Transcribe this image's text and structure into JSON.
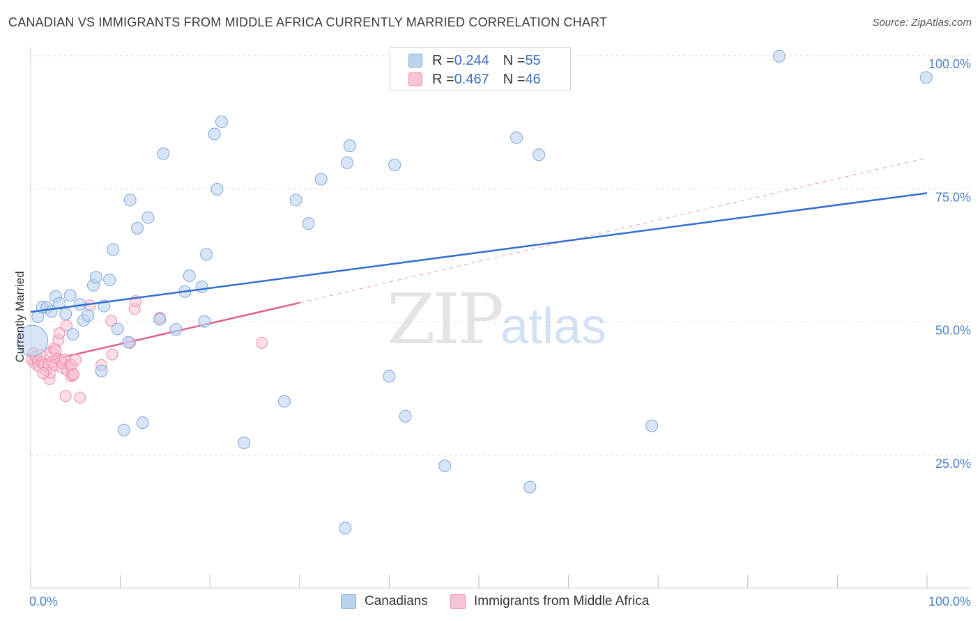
{
  "header": {
    "title": "CANADIAN VS IMMIGRANTS FROM MIDDLE AFRICA CURRENTLY MARRIED CORRELATION CHART",
    "source": "Source: ZipAtlas.com"
  },
  "watermark": {
    "zip": "ZIP",
    "atlas": "atlas"
  },
  "legend": {
    "rows": [
      {
        "r_label": "R = ",
        "r_value": "0.244",
        "n_label": "N = ",
        "n_value": "55"
      },
      {
        "r_label": "R = ",
        "r_value": "0.467",
        "n_label": "N = ",
        "n_value": "46"
      }
    ]
  },
  "bottom_legend": {
    "series1": "Canadians",
    "series2": "Immigrants from Middle Africa"
  },
  "colors": {
    "blue_fill": "#bcd3f0",
    "blue_stroke": "#7fa7da",
    "blue_line": "#2e6fd0",
    "pink_fill": "#f8c3d2",
    "pink_stroke": "#ee8cab",
    "pink_line": "#e05e8c",
    "grid": "#d9d9d9",
    "axis_text": "#4a7fc8"
  },
  "chart_data": {
    "type": "scatter",
    "title": "CANADIAN VS IMMIGRANTS FROM MIDDLE AFRICA CURRENTLY MARRIED CORRELATION CHART",
    "xlabel": "",
    "ylabel": "Currently Married",
    "xlim": [
      0,
      100
    ],
    "ylim": [
      0,
      100
    ],
    "x_tick_labels": [
      "0.0%",
      "100.0%"
    ],
    "y_ticks": [
      25,
      50,
      75,
      100
    ],
    "y_tick_labels": [
      "25.0%",
      "50.0%",
      "75.0%",
      "100.0%"
    ],
    "grid": true,
    "series": [
      {
        "name": "Canadians",
        "R": 0.244,
        "N": 55,
        "trend": {
          "x": [
            0,
            100
          ],
          "y": [
            51.9,
            74.2
          ]
        },
        "points": [
          {
            "x": 0.2,
            "y": 46.5,
            "big": true
          },
          {
            "x": 0.8,
            "y": 51.0
          },
          {
            "x": 1.3,
            "y": 52.8
          },
          {
            "x": 1.8,
            "y": 52.7
          },
          {
            "x": 2.3,
            "y": 52.0
          },
          {
            "x": 2.8,
            "y": 54.8
          },
          {
            "x": 3.2,
            "y": 53.5
          },
          {
            "x": 3.9,
            "y": 51.5
          },
          {
            "x": 4.4,
            "y": 55.0
          },
          {
            "x": 4.7,
            "y": 47.7
          },
          {
            "x": 5.5,
            "y": 53.3
          },
          {
            "x": 5.9,
            "y": 50.3
          },
          {
            "x": 6.4,
            "y": 51.2
          },
          {
            "x": 7.0,
            "y": 56.9
          },
          {
            "x": 7.3,
            "y": 58.4
          },
          {
            "x": 7.9,
            "y": 40.8
          },
          {
            "x": 8.2,
            "y": 53.0
          },
          {
            "x": 8.8,
            "y": 57.9
          },
          {
            "x": 9.2,
            "y": 63.6
          },
          {
            "x": 9.7,
            "y": 48.7
          },
          {
            "x": 10.4,
            "y": 29.7
          },
          {
            "x": 10.9,
            "y": 46.2
          },
          {
            "x": 11.1,
            "y": 72.9
          },
          {
            "x": 11.9,
            "y": 67.6
          },
          {
            "x": 12.5,
            "y": 31.1
          },
          {
            "x": 13.1,
            "y": 69.6
          },
          {
            "x": 14.4,
            "y": 50.5
          },
          {
            "x": 14.8,
            "y": 81.6
          },
          {
            "x": 16.2,
            "y": 48.6
          },
          {
            "x": 17.2,
            "y": 55.7
          },
          {
            "x": 17.7,
            "y": 58.7
          },
          {
            "x": 19.1,
            "y": 56.6
          },
          {
            "x": 19.4,
            "y": 50.1
          },
          {
            "x": 19.6,
            "y": 62.7
          },
          {
            "x": 20.5,
            "y": 85.3
          },
          {
            "x": 20.8,
            "y": 74.9
          },
          {
            "x": 21.3,
            "y": 87.6
          },
          {
            "x": 23.8,
            "y": 27.3
          },
          {
            "x": 28.3,
            "y": 35.1
          },
          {
            "x": 29.6,
            "y": 72.9
          },
          {
            "x": 31.0,
            "y": 68.5
          },
          {
            "x": 32.4,
            "y": 76.8
          },
          {
            "x": 35.1,
            "y": 11.3
          },
          {
            "x": 35.3,
            "y": 79.9
          },
          {
            "x": 35.6,
            "y": 83.1
          },
          {
            "x": 40.0,
            "y": 39.8
          },
          {
            "x": 40.6,
            "y": 79.5
          },
          {
            "x": 41.8,
            "y": 32.3
          },
          {
            "x": 46.2,
            "y": 23.0
          },
          {
            "x": 54.2,
            "y": 84.6
          },
          {
            "x": 55.7,
            "y": 19.0
          },
          {
            "x": 56.7,
            "y": 81.4
          },
          {
            "x": 69.3,
            "y": 30.5
          },
          {
            "x": 83.5,
            "y": 99.9
          },
          {
            "x": 99.9,
            "y": 95.9
          }
        ]
      },
      {
        "name": "Immigrants from Middle Africa",
        "R": 0.467,
        "N": 46,
        "trend_solid": {
          "x": [
            0,
            30
          ],
          "y": [
            42.0,
            53.6
          ]
        },
        "trend_dashed": {
          "x": [
            30,
            100
          ],
          "y": [
            53.6,
            80.8
          ]
        },
        "points": [
          {
            "x": 0.1,
            "y": 43.0
          },
          {
            "x": 0.3,
            "y": 44.1
          },
          {
            "x": 0.4,
            "y": 42.3
          },
          {
            "x": 0.6,
            "y": 43.5
          },
          {
            "x": 0.8,
            "y": 42.6
          },
          {
            "x": 0.9,
            "y": 41.7
          },
          {
            "x": 1.1,
            "y": 43.8
          },
          {
            "x": 1.3,
            "y": 42.4
          },
          {
            "x": 1.5,
            "y": 42.0
          },
          {
            "x": 1.7,
            "y": 40.9
          },
          {
            "x": 1.9,
            "y": 41.5
          },
          {
            "x": 2.0,
            "y": 42.1
          },
          {
            "x": 2.1,
            "y": 39.3
          },
          {
            "x": 2.2,
            "y": 40.5
          },
          {
            "x": 2.3,
            "y": 44.4
          },
          {
            "x": 2.4,
            "y": 42.5
          },
          {
            "x": 2.6,
            "y": 45.0
          },
          {
            "x": 2.7,
            "y": 41.9
          },
          {
            "x": 2.8,
            "y": 44.7
          },
          {
            "x": 3.0,
            "y": 43.1
          },
          {
            "x": 3.1,
            "y": 46.6
          },
          {
            "x": 3.2,
            "y": 47.9
          },
          {
            "x": 3.4,
            "y": 42.8
          },
          {
            "x": 3.5,
            "y": 41.4
          },
          {
            "x": 3.6,
            "y": 42.2
          },
          {
            "x": 3.8,
            "y": 43.0
          },
          {
            "x": 3.9,
            "y": 36.1
          },
          {
            "x": 4.0,
            "y": 49.3
          },
          {
            "x": 4.1,
            "y": 40.9
          },
          {
            "x": 4.4,
            "y": 42.0
          },
          {
            "x": 4.5,
            "y": 39.8
          },
          {
            "x": 4.6,
            "y": 41.9
          },
          {
            "x": 4.7,
            "y": 40.0
          },
          {
            "x": 4.8,
            "y": 40.2
          },
          {
            "x": 5.0,
            "y": 42.9
          },
          {
            "x": 5.5,
            "y": 35.8
          },
          {
            "x": 6.6,
            "y": 53.1
          },
          {
            "x": 7.9,
            "y": 41.9
          },
          {
            "x": 9.0,
            "y": 50.2
          },
          {
            "x": 9.1,
            "y": 43.9
          },
          {
            "x": 11.1,
            "y": 46.1
          },
          {
            "x": 11.6,
            "y": 52.4
          },
          {
            "x": 11.7,
            "y": 53.9
          },
          {
            "x": 14.4,
            "y": 50.8
          },
          {
            "x": 25.8,
            "y": 46.1
          },
          {
            "x": 1.4,
            "y": 40.4
          }
        ]
      }
    ]
  }
}
